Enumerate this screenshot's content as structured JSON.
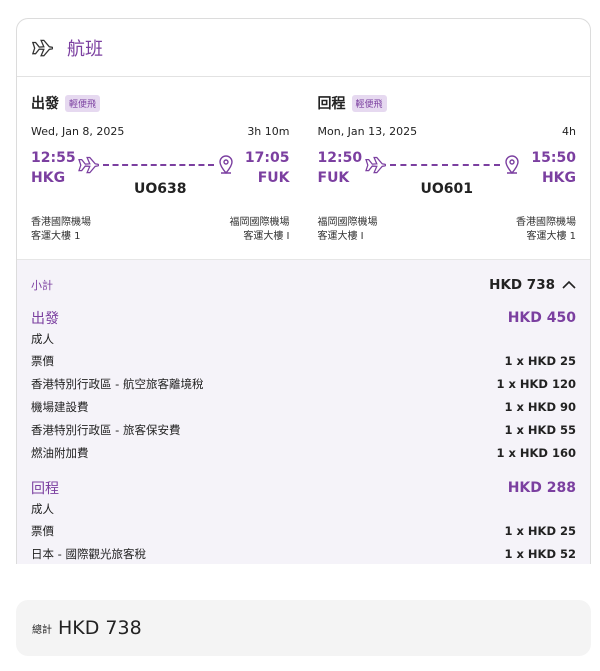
{
  "header": {
    "title": "航班",
    "icon": "plane-icon"
  },
  "flights": [
    {
      "label": "出發",
      "badge": "輕便飛",
      "date": "Wed, Jan 8, 2025",
      "duration": "3h 10m",
      "dep_time": "12:55",
      "dep_code": "HKG",
      "arr_time": "17:05",
      "arr_code": "FUK",
      "flight_no": "UO638",
      "dep_airport": "香港國際機場",
      "dep_terminal": "客運大樓 1",
      "arr_airport": "福岡國際機場",
      "arr_terminal": "客運大樓 I"
    },
    {
      "label": "回程",
      "badge": "輕便飛",
      "date": "Mon, Jan 13, 2025",
      "duration": "4h",
      "dep_time": "12:50",
      "dep_code": "FUK",
      "arr_time": "15:50",
      "arr_code": "HKG",
      "flight_no": "UO601",
      "dep_airport": "福岡國際機場",
      "dep_terminal": "客運大樓 I",
      "arr_airport": "香港國際機場",
      "arr_terminal": "客運大樓 1"
    }
  ],
  "subtotal": {
    "label": "小計",
    "value": "HKD 738"
  },
  "breakdown": [
    {
      "label": "出發",
      "total": "HKD 450",
      "pax": "成人",
      "items": [
        {
          "name": "票價",
          "value": "1 x HKD 25"
        },
        {
          "name": "香港特別行政區 - 航空旅客離境稅",
          "value": "1 x HKD 120"
        },
        {
          "name": "機場建設費",
          "value": "1 x HKD 90"
        },
        {
          "name": "香港特別行政區 - 旅客保安費",
          "value": "1 x HKD 55"
        },
        {
          "name": "燃油附加費",
          "value": "1 x HKD 160"
        }
      ]
    },
    {
      "label": "回程",
      "total": "HKD 288",
      "pax": "成人",
      "items": [
        {
          "name": "票價",
          "value": "1 x HKD 25"
        },
        {
          "name": "日本 - 國際觀光旅客稅",
          "value": "1 x HKD 52"
        }
      ]
    }
  ],
  "total": {
    "label": "總計",
    "value": "HKD 738"
  },
  "colors": {
    "accent": "#7b3fa0",
    "badge_bg": "#e6d9f0",
    "subtotal_bg": "#f5f3f9"
  }
}
